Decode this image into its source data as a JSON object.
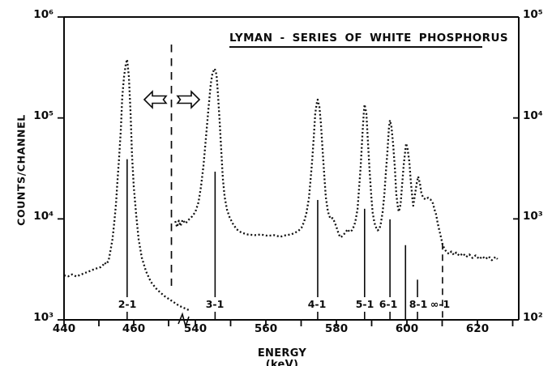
{
  "labels": {
    "title": "LYMAN - SERIES OF WHITE PHOSPHORUS",
    "x_axis": "ENERGY (keV)",
    "y_axis_left": "COUNTS/CHANNEL",
    "y_left_ticks": [
      "10⁶",
      "10⁵",
      "10⁴",
      "10³"
    ],
    "y_right_ticks": [
      "10⁵",
      "10⁴",
      "10³",
      "10²"
    ],
    "x_ticks": [
      "440",
      "460",
      "540",
      "560",
      "580",
      "600",
      "620"
    ],
    "peak_labels": [
      "2-1",
      "3-1",
      "4-1",
      "5-1",
      "6-1",
      "8-1",
      "∞-1"
    ]
  },
  "chart_data": {
    "type": "line",
    "title": "LYMAN - SERIES OF WHITE PHOSPHORUS",
    "xlabel": "ENERGY (keV)",
    "ylabel": "COUNTS/CHANNEL",
    "y_scale": "log",
    "y_left_range": [
      1000,
      1000000
    ],
    "y_right_range": [
      100,
      100000
    ],
    "x_axis_break": {
      "left_segment_keV": [
        440,
        476
      ],
      "right_segment_keV": [
        534,
        632
      ]
    },
    "x_ticks_labeled": [
      440,
      460,
      540,
      560,
      580,
      600,
      620
    ],
    "x_ticks_all": [
      440,
      450,
      460,
      470,
      540,
      550,
      560,
      570,
      580,
      590,
      600,
      610,
      620,
      630
    ],
    "scale_note_arrows": [
      "left-of-dashed-line-use-left-scale",
      "right-of-dashed-line-use-right-scale"
    ],
    "peak_markers": [
      {
        "label": "2-1",
        "keV": 458.1,
        "scale": "left",
        "apex_counts": 380000,
        "line_top_counts": 39000,
        "dashed": false,
        "to_axis": false,
        "has_label": true
      },
      {
        "label": "3-1",
        "keV": 545.6,
        "scale": "right",
        "apex_counts": 30800,
        "line_top_counts": 2940,
        "dashed": false,
        "to_axis": false,
        "has_label": true
      },
      {
        "label": "4-1",
        "keV": 574.7,
        "scale": "right",
        "apex_counts": 15200,
        "line_top_counts": 1540,
        "dashed": false,
        "to_axis": false,
        "has_label": true
      },
      {
        "label": "5-1",
        "keV": 588.0,
        "scale": "right",
        "apex_counts": 13600,
        "line_top_counts": 1260,
        "dashed": false,
        "to_axis": false,
        "has_label": true
      },
      {
        "label": "6-1",
        "keV": 595.2,
        "scale": "right",
        "apex_counts": 9500,
        "line_top_counts": 990,
        "dashed": false,
        "to_axis": false,
        "has_label": true
      },
      {
        "label": "",
        "keV": 599.6,
        "scale": "right",
        "apex_counts": 5600,
        "line_top_counts": 550,
        "dashed": false,
        "to_axis": true,
        "has_label": false
      },
      {
        "label": "8-1",
        "keV": 603.0,
        "scale": "right",
        "apex_counts": 2630,
        "line_top_counts": 250,
        "dashed": false,
        "to_axis": false,
        "has_label": true
      },
      {
        "label": "∞-1",
        "keV": 610.1,
        "scale": "right",
        "apex_counts": 1600,
        "line_top_counts": 575,
        "dashed": true,
        "to_axis": true,
        "has_label": true
      }
    ],
    "series": [
      {
        "name": "low-energy section (left counts scale)",
        "scale": "left",
        "points": [
          [
            440,
            2760
          ],
          [
            441.2,
            2700
          ],
          [
            442.3,
            2820
          ],
          [
            443.5,
            2690
          ],
          [
            444.6,
            2780
          ],
          [
            445.8,
            2900
          ],
          [
            447,
            3000
          ],
          [
            448.1,
            3120
          ],
          [
            449.3,
            3230
          ],
          [
            450.5,
            3330
          ],
          [
            451.2,
            3500
          ],
          [
            451.6,
            3690
          ],
          [
            452.1,
            3560
          ],
          [
            452.8,
            3860
          ],
          [
            453.3,
            4800
          ],
          [
            453.9,
            6300
          ],
          [
            454.4,
            9100
          ],
          [
            454.9,
            14000
          ],
          [
            455.3,
            23000
          ],
          [
            455.8,
            40000
          ],
          [
            456.3,
            77000
          ],
          [
            456.7,
            160000
          ],
          [
            457.2,
            255000
          ],
          [
            457.7,
            337000
          ],
          [
            458.1,
            380000
          ],
          [
            458.6,
            256000
          ],
          [
            459.1,
            111000
          ],
          [
            459.5,
            44000
          ],
          [
            460,
            21000
          ],
          [
            460.7,
            11000
          ],
          [
            461.4,
            6300
          ],
          [
            462.3,
            4150
          ],
          [
            463.5,
            3030
          ],
          [
            464.9,
            2380
          ],
          [
            466.7,
            1990
          ],
          [
            468.8,
            1720
          ],
          [
            470.9,
            1540
          ],
          [
            473,
            1380
          ],
          [
            475.1,
            1280
          ],
          [
            475.8,
            1250
          ]
        ]
      },
      {
        "name": "high-energy section (right counts scale)",
        "scale": "right",
        "points": [
          [
            534.3,
            950
          ],
          [
            534.8,
            830
          ],
          [
            535.3,
            960
          ],
          [
            535.8,
            850
          ],
          [
            536.4,
            980
          ],
          [
            537.2,
            900
          ],
          [
            538.2,
            990
          ],
          [
            539.1,
            1060
          ],
          [
            540,
            1170
          ],
          [
            540.9,
            1460
          ],
          [
            541.6,
            2100
          ],
          [
            542.3,
            3350
          ],
          [
            543,
            6400
          ],
          [
            543.7,
            12200
          ],
          [
            544.4,
            22000
          ],
          [
            544.8,
            27000
          ],
          [
            545.3,
            30300
          ],
          [
            545.5,
            30800
          ],
          [
            546,
            26900
          ],
          [
            546.4,
            17600
          ],
          [
            546.9,
            9200
          ],
          [
            547.4,
            4400
          ],
          [
            547.8,
            2530
          ],
          [
            548.3,
            1660
          ],
          [
            549,
            1230
          ],
          [
            549.7,
            1040
          ],
          [
            550.6,
            900
          ],
          [
            551.7,
            790
          ],
          [
            553.1,
            730
          ],
          [
            554.9,
            700
          ],
          [
            556.8,
            690
          ],
          [
            558.6,
            700
          ],
          [
            560.5,
            680
          ],
          [
            562.3,
            690
          ],
          [
            564.1,
            665
          ],
          [
            565.7,
            690
          ],
          [
            567.1,
            700
          ],
          [
            568.3,
            730
          ],
          [
            569.2,
            760
          ],
          [
            570.1,
            815
          ],
          [
            570.8,
            930
          ],
          [
            571.5,
            1140
          ],
          [
            572.2,
            1600
          ],
          [
            572.6,
            2270
          ],
          [
            573.1,
            3670
          ],
          [
            573.6,
            6600
          ],
          [
            574,
            11100
          ],
          [
            574.5,
            14400
          ],
          [
            574.7,
            15200
          ],
          [
            575.2,
            12800
          ],
          [
            575.6,
            8800
          ],
          [
            576.1,
            4800
          ],
          [
            576.6,
            2600
          ],
          [
            577,
            1660
          ],
          [
            577.5,
            1250
          ],
          [
            577.9,
            1080
          ],
          [
            578.4,
            1000
          ],
          [
            578.9,
            1020
          ],
          [
            579.3,
            960
          ],
          [
            580,
            835
          ],
          [
            580.7,
            700
          ],
          [
            581.2,
            655
          ],
          [
            581.8,
            680
          ],
          [
            582.5,
            730
          ],
          [
            583.2,
            790
          ],
          [
            583.7,
            745
          ],
          [
            584.4,
            770
          ],
          [
            585.1,
            865
          ],
          [
            585.5,
            990
          ],
          [
            586,
            1250
          ],
          [
            586.4,
            1920
          ],
          [
            586.9,
            3350
          ],
          [
            587.4,
            7000
          ],
          [
            587.8,
            11500
          ],
          [
            588,
            13600
          ],
          [
            588.5,
            11100
          ],
          [
            588.9,
            6200
          ],
          [
            589.4,
            3070
          ],
          [
            589.9,
            1660
          ],
          [
            590.3,
            1140
          ],
          [
            590.8,
            910
          ],
          [
            591.3,
            815
          ],
          [
            591.7,
            770
          ],
          [
            592.2,
            790
          ],
          [
            592.6,
            900
          ],
          [
            593.1,
            1160
          ],
          [
            593.6,
            1750
          ],
          [
            594,
            2780
          ],
          [
            594.5,
            4800
          ],
          [
            594.9,
            7900
          ],
          [
            595.2,
            9500
          ],
          [
            595.6,
            8200
          ],
          [
            596.1,
            5500
          ],
          [
            596.6,
            3150
          ],
          [
            597,
            1750
          ],
          [
            597.5,
            1270
          ],
          [
            597.7,
            1180
          ],
          [
            598.2,
            1390
          ],
          [
            598.6,
            2080
          ],
          [
            599.1,
            3450
          ],
          [
            599.6,
            5000
          ],
          [
            599.8,
            5600
          ],
          [
            600.2,
            4900
          ],
          [
            600.7,
            3670
          ],
          [
            601.1,
            2350
          ],
          [
            601.6,
            1540
          ],
          [
            601.8,
            1350
          ],
          [
            602.3,
            1750
          ],
          [
            602.8,
            2270
          ],
          [
            603.2,
            2630
          ],
          [
            603.7,
            2240
          ],
          [
            604.1,
            1820
          ],
          [
            604.6,
            1620
          ],
          [
            605.3,
            1560
          ],
          [
            606,
            1620
          ],
          [
            606.7,
            1560
          ],
          [
            607.4,
            1420
          ],
          [
            607.8,
            1250
          ],
          [
            608.3,
            1100
          ],
          [
            608.7,
            920
          ],
          [
            609.2,
            770
          ],
          [
            609.7,
            650
          ],
          [
            610.1,
            560
          ],
          [
            610.6,
            510
          ],
          [
            611.3,
            465
          ],
          [
            612,
            450
          ],
          [
            612.6,
            475
          ],
          [
            613.3,
            440
          ],
          [
            614,
            465
          ],
          [
            614.9,
            430
          ],
          [
            615.9,
            455
          ],
          [
            616.8,
            420
          ],
          [
            617.7,
            445
          ],
          [
            618.6,
            410
          ],
          [
            619.5,
            435
          ],
          [
            620.5,
            400
          ],
          [
            621.4,
            425
          ],
          [
            622.3,
            400
          ],
          [
            623.2,
            425
          ],
          [
            624.1,
            390
          ],
          [
            625.1,
            420
          ],
          [
            625.7,
            400
          ]
        ]
      }
    ]
  }
}
